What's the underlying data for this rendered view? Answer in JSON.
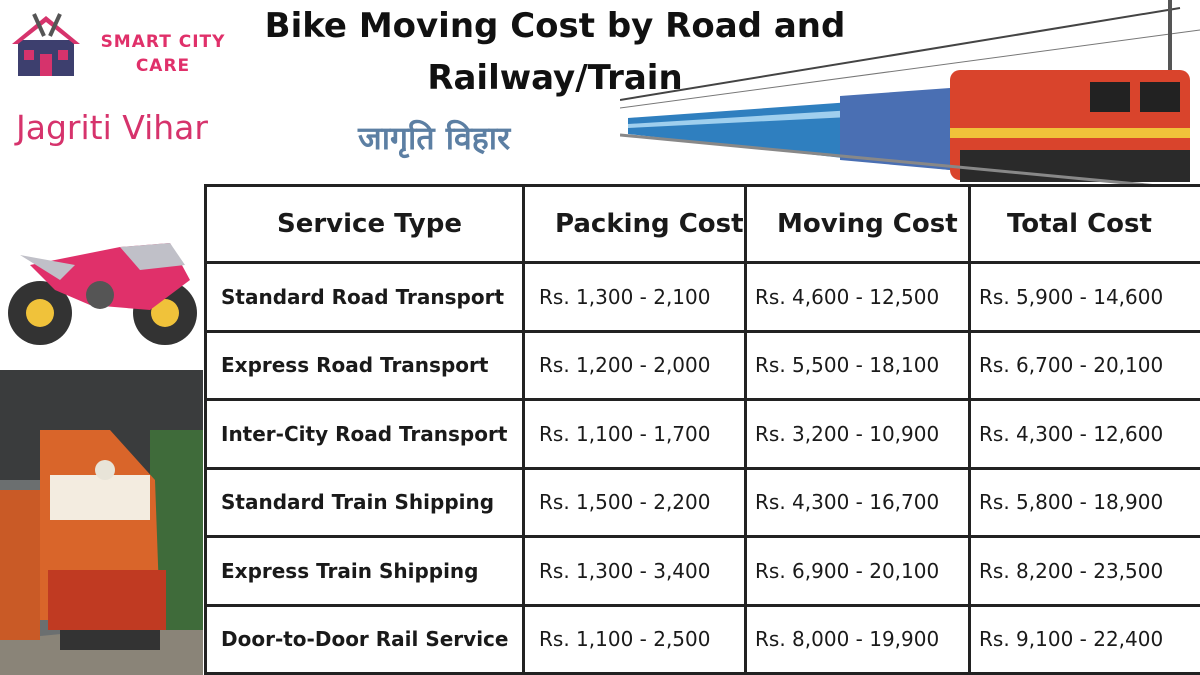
{
  "brand": {
    "line1": "SMART CITY",
    "line2": "CARE"
  },
  "title": {
    "line1": "Bike Moving Cost by Road and",
    "line2": "Railway/Train"
  },
  "location": {
    "english": "Jagriti Vihar",
    "hindi": "जागृति विहार"
  },
  "table": {
    "headers": [
      "Service Type",
      "Packing Cost",
      "Moving Cost",
      "Total Cost"
    ],
    "rows": [
      {
        "service": "Standard Road Transport",
        "packing": "Rs. 1,300 - 2,100",
        "moving": "Rs. 4,600 - 12,500",
        "total": "Rs. 5,900 - 14,600"
      },
      {
        "service": "Express Road Transport",
        "packing": "Rs. 1,200 - 2,000",
        "moving": "Rs. 5,500 - 18,100",
        "total": "Rs. 6,700 - 20,100"
      },
      {
        "service": "Inter-City Road Transport",
        "packing": "Rs. 1,100 - 1,700",
        "moving": "Rs. 3,200 - 10,900",
        "total": "Rs. 4,300 - 12,600"
      },
      {
        "service": "Standard Train Shipping",
        "packing": "Rs. 1,500 - 2,200",
        "moving": "Rs. 4,300 - 16,700",
        "total": "Rs. 5,800 - 18,900"
      },
      {
        "service": "Express Train Shipping",
        "packing": "Rs. 1,300 - 3,400",
        "moving": "Rs. 6,900 - 20,100",
        "total": "Rs. 8,200 - 23,500"
      },
      {
        "service": "Door-to-Door Rail Service",
        "packing": "Rs. 1,100 - 2,500",
        "moving": "Rs. 8,000 - 19,900",
        "total": "Rs. 9,100 - 22,400"
      }
    ]
  },
  "colors": {
    "brand_pink": "#e0306a",
    "location_pink": "#d6336c",
    "hindi_blue": "#5c7fa3",
    "house": "#3d3f6e"
  },
  "icons": [
    "house-tools-logo-icon",
    "electric-train-illustration",
    "motorbike-illustration",
    "diesel-locomotive-photo"
  ]
}
